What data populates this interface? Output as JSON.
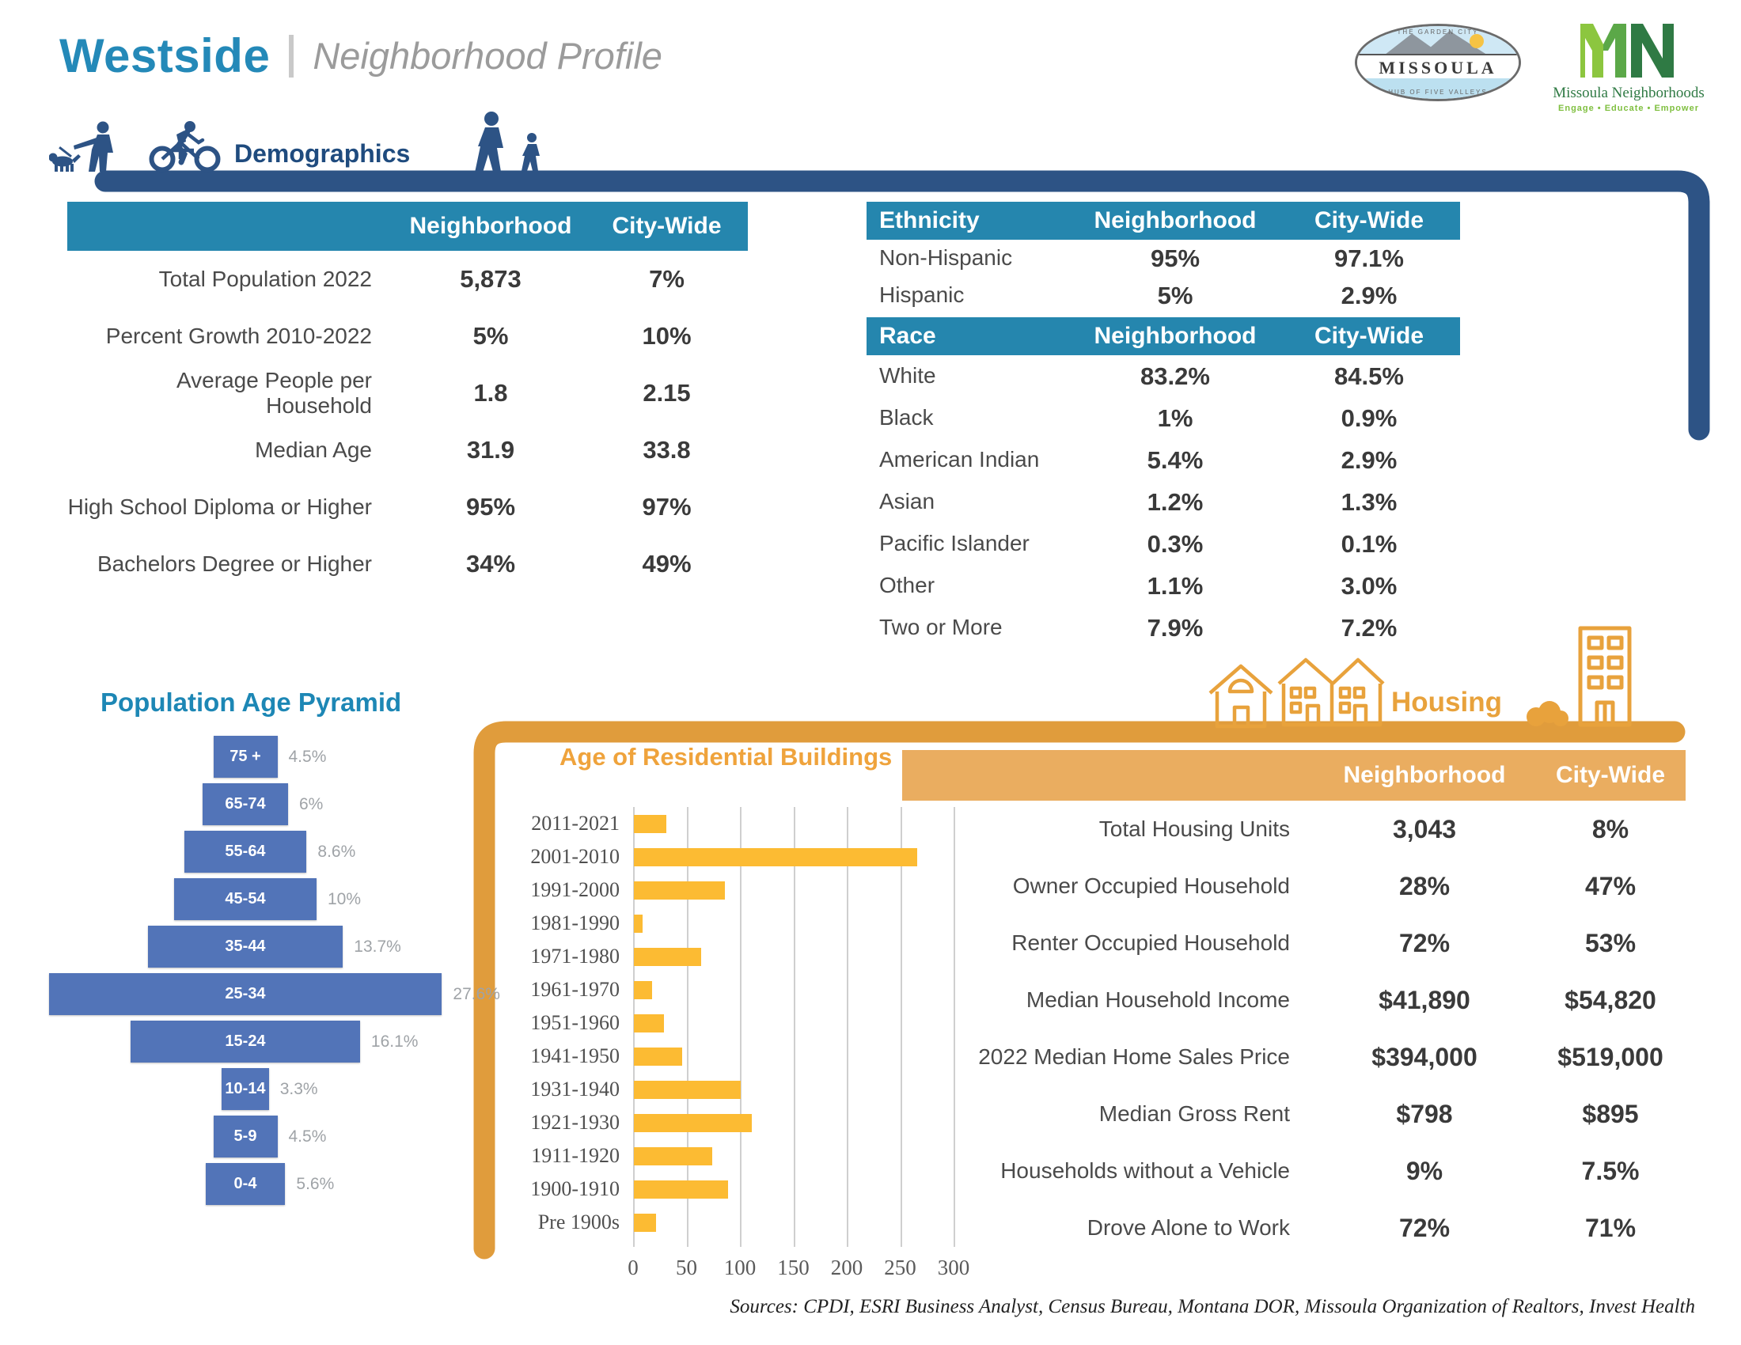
{
  "header": {
    "title": "Westside",
    "subtitle": "Neighborhood Profile"
  },
  "city_logo": {
    "name": "MISSOULA",
    "top_text": "THE GARDEN CITY",
    "bottom_text": "HUB OF FIVE VALLEYS"
  },
  "mn_logo": {
    "initials": "MN",
    "name": "Missoula Neighborhoods",
    "tagline": "Engage • Educate • Empower"
  },
  "demographics": {
    "section_label": "Demographics",
    "table": {
      "col_neighborhood": "Neighborhood",
      "col_citywide": "City-Wide",
      "rows": [
        {
          "label": "Total Population 2022",
          "neighborhood": "5,873",
          "city_wide": "7%"
        },
        {
          "label": "Percent Growth 2010-2022",
          "neighborhood": "5%",
          "city_wide": "10%"
        },
        {
          "label": "Average People per Household",
          "neighborhood": "1.8",
          "city_wide": "2.15"
        },
        {
          "label": "Median Age",
          "neighborhood": "31.9",
          "city_wide": "33.8"
        },
        {
          "label": "High School Diploma or Higher",
          "neighborhood": "95%",
          "city_wide": "97%"
        },
        {
          "label": "Bachelors Degree or Higher",
          "neighborhood": "34%",
          "city_wide": "49%"
        }
      ]
    }
  },
  "ethnicity_table": {
    "header": "Ethnicity",
    "col_neighborhood": "Neighborhood",
    "col_citywide": "City-Wide",
    "rows": [
      {
        "label": "Non-Hispanic",
        "neighborhood": "95%",
        "city_wide": "97.1%"
      },
      {
        "label": "Hispanic",
        "neighborhood": "5%",
        "city_wide": "2.9%"
      }
    ]
  },
  "race_table": {
    "header": "Race",
    "col_neighborhood": "Neighborhood",
    "col_citywide": "City-Wide",
    "rows": [
      {
        "label": "White",
        "neighborhood": "83.2%",
        "city_wide": "84.5%"
      },
      {
        "label": "Black",
        "neighborhood": "1%",
        "city_wide": "0.9%"
      },
      {
        "label": "American Indian",
        "neighborhood": "5.4%",
        "city_wide": "2.9%"
      },
      {
        "label": "Asian",
        "neighborhood": "1.2%",
        "city_wide": "1.3%"
      },
      {
        "label": "Pacific Islander",
        "neighborhood": "0.3%",
        "city_wide": "0.1%"
      },
      {
        "label": "Other",
        "neighborhood": "1.1%",
        "city_wide": "3.0%"
      },
      {
        "label": "Two or More",
        "neighborhood": "7.9%",
        "city_wide": "7.2%"
      }
    ]
  },
  "housing": {
    "section_label": "Housing",
    "table": {
      "col_neighborhood": "Neighborhood",
      "col_citywide": "City-Wide",
      "rows": [
        {
          "label": "Total Housing Units",
          "neighborhood": "3,043",
          "city_wide": "8%"
        },
        {
          "label": "Owner Occupied Household",
          "neighborhood": "28%",
          "city_wide": "47%"
        },
        {
          "label": "Renter Occupied Household",
          "neighborhood": "72%",
          "city_wide": "53%"
        },
        {
          "label": "Median Household Income",
          "neighborhood": "$41,890",
          "city_wide": "$54,820"
        },
        {
          "label": "2022 Median Home Sales Price",
          "neighborhood": "$394,000",
          "city_wide": "$519,000"
        },
        {
          "label": "Median Gross Rent",
          "neighborhood": "$798",
          "city_wide": "$895"
        },
        {
          "label": "Households without a Vehicle",
          "neighborhood": "9%",
          "city_wide": "7.5%"
        },
        {
          "label": "Drove Alone to Work",
          "neighborhood": "72%",
          "city_wide": "71%"
        }
      ]
    }
  },
  "chart_data": [
    {
      "type": "bar",
      "orientation": "horizontal-pyramid",
      "title": "Population Age Pyramid",
      "categories": [
        "75 +",
        "65-74",
        "55-64",
        "45-54",
        "35-44",
        "25-34",
        "15-24",
        "10-14",
        "5-9",
        "0-4"
      ],
      "values": [
        4.5,
        6,
        8.6,
        10,
        13.7,
        27.6,
        16.1,
        3.3,
        4.5,
        5.6
      ],
      "labels": [
        "4.5%",
        "6%",
        "8.6%",
        "10%",
        "13.7%",
        "27.6%",
        "16.1%",
        "3.3%",
        "4.5%",
        "5.6%"
      ],
      "unit": "%",
      "bar_color": "#5274B8",
      "grid": false,
      "legend": "none"
    },
    {
      "type": "bar",
      "orientation": "horizontal",
      "title": "Age of Residential Buildings",
      "categories": [
        "2011-2021",
        "2001-2010",
        "1991-2000",
        "1981-1990",
        "1971-1980",
        "1961-1970",
        "1951-1960",
        "1941-1950",
        "1931-1940",
        "1921-1930",
        "1911-1920",
        "1900-1910",
        "Pre 1900s"
      ],
      "values": [
        30,
        265,
        85,
        8,
        63,
        17,
        28,
        45,
        100,
        110,
        73,
        88,
        21
      ],
      "xlabel": "",
      "ylabel": "",
      "xlim": [
        0,
        300
      ],
      "xticks": [
        0,
        50,
        100,
        150,
        200,
        250,
        300
      ],
      "bar_color": "#FCBB33",
      "grid": true,
      "legend": "none"
    }
  ],
  "colors": {
    "teal_header": "#2586AE",
    "navy_frame": "#2D5385",
    "orange_frame": "#E09C3C",
    "orange_header": "#EAAD60",
    "title_teal": "#2489B8",
    "pyramid_bar": "#5274B8",
    "gold_bar": "#FCBB33"
  },
  "sources": "Sources: CPDI, ESRI Business Analyst, Census Bureau, Montana DOR, Missoula Organization of Realtors, Invest Health"
}
